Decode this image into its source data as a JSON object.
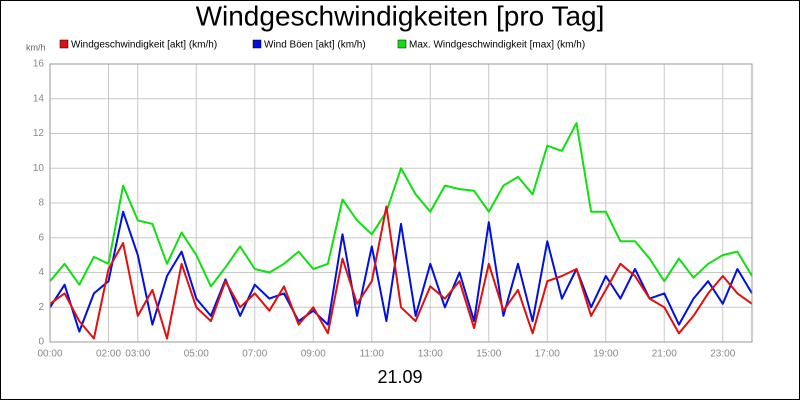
{
  "chart_data": {
    "type": "line",
    "title": "Windgeschwindigkeiten [pro Tag]",
    "y_label": "km/h",
    "x_label": "21.09",
    "x": [
      0,
      0.5,
      1,
      1.5,
      2,
      2.5,
      3,
      3.5,
      4,
      4.5,
      5,
      5.5,
      6,
      6.5,
      7,
      7.5,
      8,
      8.5,
      9,
      9.5,
      10,
      10.5,
      11,
      11.5,
      12,
      12.5,
      13,
      13.5,
      14,
      14.5,
      15,
      15.5,
      16,
      16.5,
      17,
      17.5,
      18,
      18.5,
      19,
      19.5,
      20,
      20.5,
      21,
      21.5,
      22,
      22.5,
      23,
      23.5,
      24
    ],
    "series": [
      {
        "name": "Windgeschwindigkeit [akt] (km/h)",
        "color": "#e01010",
        "values": [
          2.2,
          2.8,
          1.2,
          0.2,
          4.2,
          5.7,
          1.5,
          3,
          0.2,
          4.5,
          2,
          1.2,
          3.5,
          2,
          2.8,
          1.8,
          3.2,
          1,
          2,
          0.5,
          4.8,
          2.2,
          3.5,
          7.8,
          2,
          1.2,
          3.2,
          2.5,
          3.5,
          0.8,
          4.5,
          1.8,
          3,
          0.5,
          3.5,
          3.8,
          4.2,
          1.5,
          3,
          4.5,
          3.8,
          2.5,
          2,
          0.5,
          1.5,
          2.8,
          3.8,
          2.8,
          2.2
        ]
      },
      {
        "name": "Wind Böen [akt] (km/h)",
        "color": "#0010e0",
        "values": [
          2,
          3.3,
          0.6,
          2.8,
          3.5,
          7.5,
          5,
          1,
          3.8,
          5.2,
          2.5,
          1.5,
          3.6,
          1.5,
          3.3,
          2.5,
          2.8,
          1.2,
          1.8,
          1,
          6.2,
          1.5,
          5.5,
          1.2,
          6.8,
          1.5,
          4.5,
          2,
          4,
          1.2,
          6.9,
          1.5,
          4.5,
          1.2,
          5.8,
          2.5,
          4.2,
          2,
          3.8,
          2.5,
          4.2,
          2.5,
          2.8,
          1,
          2.5,
          3.5,
          2.2,
          4.2,
          2.8
        ]
      },
      {
        "name": "Max. Windgeschwindigkeit [max] (km/h)",
        "color": "#10e010",
        "values": [
          3.5,
          4.5,
          3.3,
          4.9,
          4.5,
          9,
          7,
          6.8,
          4.5,
          6.3,
          5,
          3.2,
          4.3,
          5.5,
          4.2,
          4,
          4.5,
          5.2,
          4.2,
          4.5,
          8.2,
          7,
          6.2,
          7.5,
          10,
          8.5,
          7.5,
          9,
          8.8,
          8.7,
          7.5,
          9,
          9.5,
          8.5,
          11.3,
          11,
          12.6,
          7.5,
          7.5,
          5.8,
          5.8,
          4.8,
          3.5,
          4.8,
          3.7,
          4.5,
          5,
          5.2,
          3.8
        ]
      }
    ],
    "xlim": [
      0,
      24
    ],
    "xticks": [
      {
        "value": 0,
        "label": "00:00"
      },
      {
        "value": 2,
        "label": "02:00"
      },
      {
        "value": 3,
        "label": "03:00"
      },
      {
        "value": 5,
        "label": "05:00"
      },
      {
        "value": 7,
        "label": "07:00"
      },
      {
        "value": 9,
        "label": "09:00"
      },
      {
        "value": 11,
        "label": "11:00"
      },
      {
        "value": 13,
        "label": "13:00"
      },
      {
        "value": 15,
        "label": "15:00"
      },
      {
        "value": 17,
        "label": "17:00"
      },
      {
        "value": 19,
        "label": "19:00"
      },
      {
        "value": 21,
        "label": "21:00"
      },
      {
        "value": 23,
        "label": "23:00"
      }
    ],
    "ylim": [
      0,
      16
    ],
    "yticks": [
      0,
      2,
      4,
      6,
      8,
      10,
      12,
      14,
      16
    ],
    "grid": true
  }
}
